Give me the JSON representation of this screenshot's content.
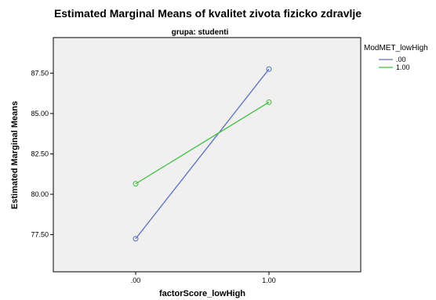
{
  "chart_data": {
    "type": "line",
    "title": "Estimated Marginal Means of kvalitet zivota fizicko zdravlje",
    "subtitle": "grupa: studenti",
    "xlabel": "factorScore_lowHigh",
    "ylabel": "Estimated Marginal Means",
    "categories": [
      ".00",
      "1.00"
    ],
    "yticks": [
      "77.50",
      "80.00",
      "82.50",
      "85.00",
      "87.50"
    ],
    "ytick_values": [
      77.5,
      80.0,
      82.5,
      85.0,
      87.5
    ],
    "ylim": [
      75.2,
      89.7
    ],
    "legend_title": "ModMET_lowHigh",
    "legend_position": "top-right",
    "plot_background": "#f0f0f0",
    "series": [
      {
        "name": ".00",
        "color": "#5a6fbd",
        "values": [
          77.25,
          87.75
        ]
      },
      {
        "name": "1.00",
        "color": "#3fbf3f",
        "values": [
          80.65,
          85.7
        ]
      }
    ]
  }
}
